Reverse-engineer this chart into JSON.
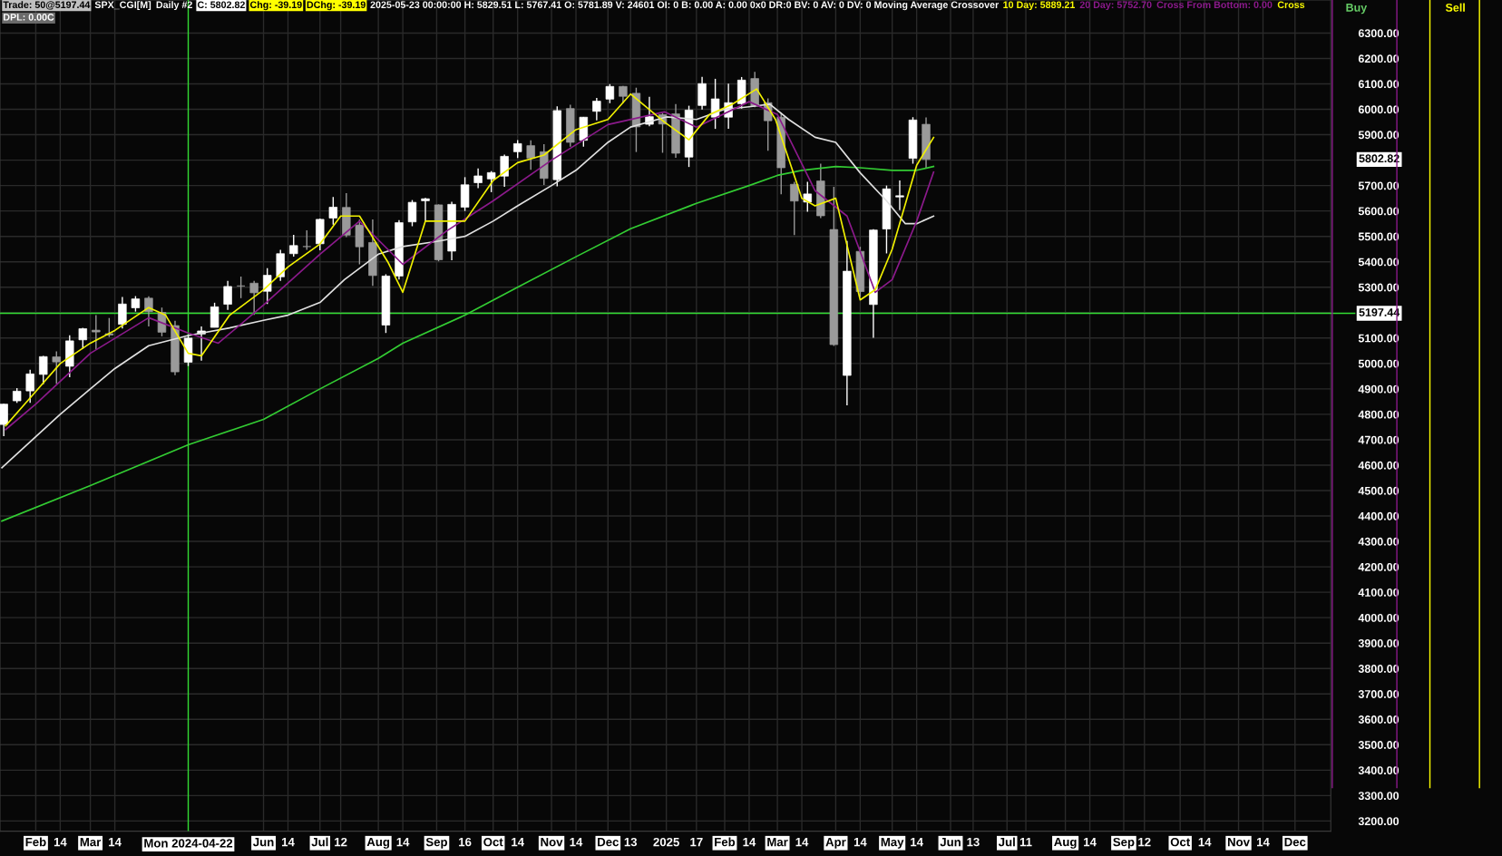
{
  "chart_data": {
    "type": "candlestick",
    "annotations": [
      "Trade: 50@5197.44",
      "SPX_CGI[M]",
      "Daily #2",
      "C: 5802.82",
      "Chg: -39.19",
      "DChg: -39.19",
      "2025-05-23 00:00:00 H: 5829.51 L: 5767.41 O: 5781.89 V: 24601 OI: 0 B: 0.00 A: 0.00 0x0 DR:0 BV: 0 AV: 0 DV: 0 Moving Average Crossover",
      "10 Day: 5889.21",
      "20 Day: 5752.70",
      "Cross From Bottom: 0.00",
      "Cross",
      "DPL: 0.00C",
      "Buy",
      "Sell",
      "5802.82"
    ],
    "xlim": [
      "2024-01-13",
      "2025-12-20"
    ],
    "ylim": [
      3160,
      6430
    ],
    "xticks": [
      {
        "value": "2024-02-01",
        "label": "Feb"
      },
      {
        "value": "2024-02-14",
        "label": "14"
      },
      {
        "value": "2024-03-01",
        "label": "Mar"
      },
      {
        "value": "2024-03-14",
        "label": "14"
      },
      {
        "value": "2024-06-01",
        "label": "Jun"
      },
      {
        "value": "2024-06-14",
        "label": "14"
      },
      {
        "value": "2024-07-01",
        "label": "Jul"
      },
      {
        "value": "2024-07-12",
        "label": "12"
      },
      {
        "value": "2024-08-01",
        "label": "Aug"
      },
      {
        "value": "2024-08-14",
        "label": "14"
      },
      {
        "value": "2024-09-01",
        "label": "Sep"
      },
      {
        "value": "2024-09-16",
        "label": "16"
      },
      {
        "value": "2024-10-01",
        "label": "Oct"
      },
      {
        "value": "2024-10-14",
        "label": "14"
      },
      {
        "value": "2024-11-01",
        "label": "Nov"
      },
      {
        "value": "2024-11-14",
        "label": "14"
      },
      {
        "value": "2024-12-01",
        "label": "Dec"
      },
      {
        "value": "2024-12-13",
        "label": "13"
      },
      {
        "value": "2025-01-01",
        "label": "2025"
      },
      {
        "value": "2025-01-17",
        "label": "17"
      },
      {
        "value": "2025-02-01",
        "label": "Feb"
      },
      {
        "value": "2025-02-14",
        "label": "14"
      },
      {
        "value": "2025-03-01",
        "label": "Mar"
      },
      {
        "value": "2025-03-14",
        "label": "14"
      },
      {
        "value": "2025-04-01",
        "label": "Apr"
      },
      {
        "value": "2025-04-14",
        "label": "14"
      },
      {
        "value": "2025-05-01",
        "label": "May"
      },
      {
        "value": "2025-05-14",
        "label": "14"
      },
      {
        "value": "2025-06-01",
        "label": "Jun"
      },
      {
        "value": "2025-06-13",
        "label": "13"
      },
      {
        "value": "2025-07-01",
        "label": "Jul"
      },
      {
        "value": "2025-07-11",
        "label": "11"
      },
      {
        "value": "2025-08-01",
        "label": "Aug"
      },
      {
        "value": "2025-08-14",
        "label": "14"
      },
      {
        "value": "2025-09-01",
        "label": "Sep"
      },
      {
        "value": "2025-09-12",
        "label": "12"
      },
      {
        "value": "2025-10-01",
        "label": "Oct"
      },
      {
        "value": "2025-10-14",
        "label": "14"
      },
      {
        "value": "2025-11-01",
        "label": "Nov"
      },
      {
        "value": "2025-11-14",
        "label": "14"
      },
      {
        "value": "2025-12-01",
        "label": "Dec"
      }
    ],
    "yticks": [
      {
        "value": 3200,
        "label": "3200.00"
      },
      {
        "value": 3300,
        "label": "3300.00"
      },
      {
        "value": 3400,
        "label": "3400.00"
      },
      {
        "value": 3500,
        "label": "3500.00"
      },
      {
        "value": 3600,
        "label": "3600.00"
      },
      {
        "value": 3700,
        "label": "3700.00"
      },
      {
        "value": 3800,
        "label": "3800.00"
      },
      {
        "value": 3900,
        "label": "3900.00"
      },
      {
        "value": 4000,
        "label": "4000.00"
      },
      {
        "value": 4100,
        "label": "4100.00"
      },
      {
        "value": 4200,
        "label": "4200.00"
      },
      {
        "value": 4300,
        "label": "4300.00"
      },
      {
        "value": 4400,
        "label": "4400.00"
      },
      {
        "value": 4500,
        "label": "4500.00"
      },
      {
        "value": 4600,
        "label": "4600.00"
      },
      {
        "value": 4700,
        "label": "4700.00"
      },
      {
        "value": 4800,
        "label": "4800.00"
      },
      {
        "value": 4900,
        "label": "4900.00"
      },
      {
        "value": 5000,
        "label": "5000.00"
      },
      {
        "value": 5100,
        "label": "5100.00"
      },
      {
        "value": 5200,
        "label": null
      },
      {
        "value": 5300,
        "label": "5300.00"
      },
      {
        "value": 5400,
        "label": "5400.00"
      },
      {
        "value": 5500,
        "label": "5500.00"
      },
      {
        "value": 5600,
        "label": "5600.00"
      },
      {
        "value": 5700,
        "label": "5700.00"
      },
      {
        "value": 5800,
        "label": null
      },
      {
        "value": 5900,
        "label": "5900.00"
      },
      {
        "value": 6000,
        "label": "6000.00"
      },
      {
        "value": 6100,
        "label": "6100.00"
      },
      {
        "value": 6200,
        "label": "6200.00"
      },
      {
        "value": 6300,
        "label": "6300.00"
      }
    ],
    "grid": true,
    "ref_lines": [
      {
        "axis": "y",
        "value": 5197.44,
        "label": "5197.44",
        "color": "#33dd33"
      },
      {
        "axis": "x",
        "value": "2024-04-22",
        "label": "Mon 2024-04-22",
        "color": "#33dd33"
      }
    ],
    "series": [
      {
        "type": "line",
        "color": "#33cc33",
        "x": [
          "2024-01-14",
          "2024-03-01",
          "2024-04-22",
          "2024-06-01",
          "2024-07-01",
          "2024-08-01",
          "2024-08-14",
          "2024-09-16",
          "2024-10-14",
          "2024-11-14",
          "2024-12-13",
          "2025-01-17",
          "2025-02-14",
          "2025-03-01",
          "2025-03-14",
          "2025-04-01",
          "2025-04-14",
          "2025-05-01",
          "2025-05-14",
          "2025-05-23"
        ],
        "values": [
          4380,
          4520,
          4680,
          4780,
          4900,
          5020,
          5080,
          5190,
          5300,
          5420,
          5530,
          5630,
          5700,
          5740,
          5760,
          5775,
          5770,
          5760,
          5760,
          5775
        ]
      },
      {
        "type": "line",
        "color": "#e0e0e0",
        "x": [
          "2024-01-14",
          "2024-02-14",
          "2024-03-01",
          "2024-03-14",
          "2024-04-01",
          "2024-04-22",
          "2024-05-14",
          "2024-06-01",
          "2024-06-14",
          "2024-07-01",
          "2024-07-14",
          "2024-08-01",
          "2024-08-14",
          "2024-09-01",
          "2024-09-16",
          "2024-10-01",
          "2024-10-14",
          "2024-11-01",
          "2024-11-14",
          "2024-12-01",
          "2024-12-13",
          "2025-01-01",
          "2025-01-17",
          "2025-02-01",
          "2025-02-14",
          "2025-02-25",
          "2025-03-07",
          "2025-03-21",
          "2025-04-01",
          "2025-04-14",
          "2025-04-28",
          "2025-05-08",
          "2025-05-14",
          "2025-05-23"
        ],
        "values": [
          4590,
          4800,
          4900,
          4980,
          5070,
          5110,
          5140,
          5170,
          5190,
          5240,
          5330,
          5430,
          5460,
          5480,
          5500,
          5560,
          5620,
          5700,
          5760,
          5870,
          5930,
          5970,
          5960,
          6000,
          6010,
          6020,
          5960,
          5890,
          5870,
          5750,
          5640,
          5550,
          5550,
          5580
        ]
      },
      {
        "type": "line",
        "color": "#8b1a8b",
        "x": [
          "2024-01-16",
          "2024-02-01",
          "2024-03-01",
          "2024-04-01",
          "2024-04-22",
          "2024-05-08",
          "2024-06-01",
          "2024-07-01",
          "2024-07-22",
          "2024-08-14",
          "2024-09-06",
          "2024-10-01",
          "2024-11-01",
          "2024-12-01",
          "2024-12-31",
          "2025-01-17",
          "2025-02-14",
          "2025-03-01",
          "2025-03-21",
          "2025-04-07",
          "2025-04-22",
          "2025-05-01",
          "2025-05-14",
          "2025-05-23"
        ],
        "values": [
          4740,
          4840,
          5040,
          5180,
          5120,
          5080,
          5230,
          5430,
          5560,
          5390,
          5520,
          5640,
          5800,
          5940,
          5990,
          5930,
          6030,
          5980,
          5680,
          5580,
          5280,
          5330,
          5560,
          5753
        ]
      },
      {
        "type": "line",
        "color": "#f0f000",
        "x": [
          "2024-01-16",
          "2024-02-01",
          "2024-02-14",
          "2024-03-01",
          "2024-03-14",
          "2024-04-01",
          "2024-04-10",
          "2024-04-22",
          "2024-04-29",
          "2024-05-14",
          "2024-06-01",
          "2024-06-14",
          "2024-07-01",
          "2024-07-12",
          "2024-07-22",
          "2024-08-06",
          "2024-08-14",
          "2024-08-26",
          "2024-09-06",
          "2024-09-16",
          "2024-10-01",
          "2024-10-14",
          "2024-10-28",
          "2024-11-14",
          "2024-12-01",
          "2024-12-13",
          "2024-12-31",
          "2025-01-13",
          "2025-01-24",
          "2025-02-05",
          "2025-02-18",
          "2025-02-28",
          "2025-03-14",
          "2025-03-21",
          "2025-04-01",
          "2025-04-14",
          "2025-04-22",
          "2025-05-01",
          "2025-05-14",
          "2025-05-23"
        ],
        "values": [
          4755,
          4890,
          5000,
          5080,
          5130,
          5220,
          5190,
          5040,
          5030,
          5190,
          5290,
          5380,
          5470,
          5580,
          5580,
          5400,
          5280,
          5560,
          5560,
          5560,
          5720,
          5790,
          5820,
          5920,
          5960,
          6060,
          5950,
          5880,
          5980,
          6020,
          6080,
          5960,
          5650,
          5620,
          5650,
          5250,
          5290,
          5450,
          5780,
          5889
        ]
      },
      {
        "type": "candlestick",
        "x": [
          "2024-01-15",
          "2024-01-22",
          "2024-01-29",
          "2024-02-05",
          "2024-02-12",
          "2024-02-19",
          "2024-02-26",
          "2024-03-04",
          "2024-03-11",
          "2024-03-18",
          "2024-03-25",
          "2024-04-01",
          "2024-04-08",
          "2024-04-15",
          "2024-04-22",
          "2024-04-29",
          "2024-05-06",
          "2024-05-13",
          "2024-05-20",
          "2024-05-27",
          "2024-06-03",
          "2024-06-10",
          "2024-06-17",
          "2024-06-24",
          "2024-07-01",
          "2024-07-08",
          "2024-07-15",
          "2024-07-22",
          "2024-07-29",
          "2024-08-05",
          "2024-08-12",
          "2024-08-19",
          "2024-08-26",
          "2024-09-02",
          "2024-09-09",
          "2024-09-16",
          "2024-09-23",
          "2024-09-30",
          "2024-10-07",
          "2024-10-14",
          "2024-10-21",
          "2024-10-28",
          "2024-11-04",
          "2024-11-11",
          "2024-11-18",
          "2024-11-25",
          "2024-12-02",
          "2024-12-09",
          "2024-12-16",
          "2024-12-23",
          "2024-12-30",
          "2025-01-06",
          "2025-01-13",
          "2025-01-20",
          "2025-01-27",
          "2025-02-03",
          "2025-02-10",
          "2025-02-17",
          "2025-02-24",
          "2025-03-03",
          "2025-03-10",
          "2025-03-17",
          "2025-03-24",
          "2025-03-31",
          "2025-04-07",
          "2025-04-14",
          "2025-04-21",
          "2025-04-28",
          "2025-05-05",
          "2025-05-12",
          "2025-05-19"
        ],
        "ohlc": [
          [
            4760,
            4842,
            4714,
            4840
          ],
          [
            4853,
            4903,
            4845,
            4891
          ],
          [
            4892,
            4975,
            4845,
            4959
          ],
          [
            4957,
            5030,
            4918,
            5027
          ],
          [
            5026,
            5048,
            4920,
            5006
          ],
          [
            4989,
            5111,
            4946,
            5089
          ],
          [
            5093,
            5140,
            5057,
            5137
          ],
          [
            5131,
            5190,
            5056,
            5124
          ],
          [
            5112,
            5179,
            5104,
            5117
          ],
          [
            5154,
            5262,
            5138,
            5234
          ],
          [
            5219,
            5265,
            5204,
            5254
          ],
          [
            5257,
            5264,
            5146,
            5204
          ],
          [
            5201,
            5220,
            5107,
            5123
          ],
          [
            5149,
            5168,
            4954,
            4967
          ],
          [
            5005,
            5114,
            4990,
            5100
          ],
          [
            5116,
            5146,
            5011,
            5128
          ],
          [
            5142,
            5239,
            5142,
            5223
          ],
          [
            5233,
            5325,
            5211,
            5303
          ],
          [
            5305,
            5342,
            5257,
            5305
          ],
          [
            5316,
            5325,
            5191,
            5278
          ],
          [
            5284,
            5375,
            5234,
            5347
          ],
          [
            5341,
            5447,
            5325,
            5432
          ],
          [
            5432,
            5506,
            5420,
            5464
          ],
          [
            5460,
            5524,
            5447,
            5460
          ],
          [
            5471,
            5570,
            5445,
            5567
          ],
          [
            5572,
            5655,
            5546,
            5615
          ],
          [
            5614,
            5670,
            5497,
            5505
          ],
          [
            5545,
            5566,
            5390,
            5459
          ],
          [
            5476,
            5567,
            5305,
            5346
          ],
          [
            5151,
            5351,
            5120,
            5344
          ],
          [
            5344,
            5564,
            5330,
            5554
          ],
          [
            5557,
            5643,
            5540,
            5634
          ],
          [
            5640,
            5651,
            5560,
            5648
          ],
          [
            5624,
            5626,
            5402,
            5408
          ],
          [
            5442,
            5636,
            5406,
            5626
          ],
          [
            5615,
            5733,
            5600,
            5703
          ],
          [
            5711,
            5767,
            5690,
            5738
          ],
          [
            5726,
            5757,
            5674,
            5751
          ],
          [
            5737,
            5822,
            5695,
            5815
          ],
          [
            5833,
            5879,
            5808,
            5865
          ],
          [
            5857,
            5878,
            5762,
            5808
          ],
          [
            5833,
            5863,
            5702,
            5728
          ],
          [
            5723,
            6012,
            5697,
            5995
          ],
          [
            6003,
            6018,
            5853,
            5870
          ],
          [
            5878,
            5970,
            5853,
            5969
          ],
          [
            5992,
            6045,
            5956,
            6032
          ],
          [
            6040,
            6099,
            6024,
            6090
          ],
          [
            6090,
            6092,
            6024,
            6051
          ],
          [
            6063,
            6085,
            5832,
            5931
          ],
          [
            5941,
            6049,
            5933,
            5971
          ],
          [
            5979,
            5985,
            5829,
            5942
          ],
          [
            5982,
            6021,
            5809,
            5827
          ],
          [
            5812,
            6014,
            5773,
            5997
          ],
          [
            6015,
            6128,
            5999,
            6101
          ],
          [
            5969,
            6120,
            5923,
            6041
          ],
          [
            5969,
            6101,
            5923,
            6026
          ],
          [
            6022,
            6127,
            6003,
            6115
          ],
          [
            6121,
            6147,
            6008,
            6013
          ],
          [
            6026,
            6043,
            5837,
            5955
          ],
          [
            5969,
            5987,
            5666,
            5770
          ],
          [
            5705,
            5715,
            5505,
            5639
          ],
          [
            5635,
            5715,
            5597,
            5667
          ],
          [
            5718,
            5786,
            5572,
            5581
          ],
          [
            5527,
            5695,
            5069,
            5074
          ],
          [
            4953,
            5482,
            4835,
            5363
          ],
          [
            5441,
            5459,
            5262,
            5283
          ],
          [
            5232,
            5528,
            5101,
            5525
          ],
          [
            5529,
            5700,
            5433,
            5687
          ],
          [
            5655,
            5720,
            5603,
            5660
          ],
          [
            5807,
            5969,
            5786,
            5958
          ],
          [
            5941,
            5968,
            5767,
            5802.82
          ]
        ],
        "colors": [
          "#ffffff",
          "#ffffff",
          "#ffffff",
          "#ffffff",
          "#9a9a9a",
          "#ffffff",
          "#ffffff",
          "#9a9a9a",
          "#9a9a9a",
          "#ffffff",
          "#ffffff",
          "#9a9a9a",
          "#9a9a9a",
          "#9a9a9a",
          "#ffffff",
          "#ffffff",
          "#ffffff",
          "#ffffff",
          "#9a9a9a",
          "#9a9a9a",
          "#ffffff",
          "#ffffff",
          "#ffffff",
          "#9a9a9a",
          "#ffffff",
          "#ffffff",
          "#9a9a9a",
          "#9a9a9a",
          "#9a9a9a",
          "#ffffff",
          "#ffffff",
          "#ffffff",
          "#ffffff",
          "#9a9a9a",
          "#ffffff",
          "#ffffff",
          "#ffffff",
          "#ffffff",
          "#ffffff",
          "#ffffff",
          "#9a9a9a",
          "#9a9a9a",
          "#ffffff",
          "#9a9a9a",
          "#ffffff",
          "#ffffff",
          "#ffffff",
          "#9a9a9a",
          "#9a9a9a",
          "#ffffff",
          "#9a9a9a",
          "#9a9a9a",
          "#ffffff",
          "#ffffff",
          "#ffffff",
          "#ffffff",
          "#ffffff",
          "#9a9a9a",
          "#9a9a9a",
          "#9a9a9a",
          "#9a9a9a",
          "#ffffff",
          "#9a9a9a",
          "#9a9a9a",
          "#ffffff",
          "#9a9a9a",
          "#ffffff",
          "#ffffff",
          "#ffffff",
          "#ffffff",
          "#9a9a9a"
        ]
      }
    ]
  }
}
